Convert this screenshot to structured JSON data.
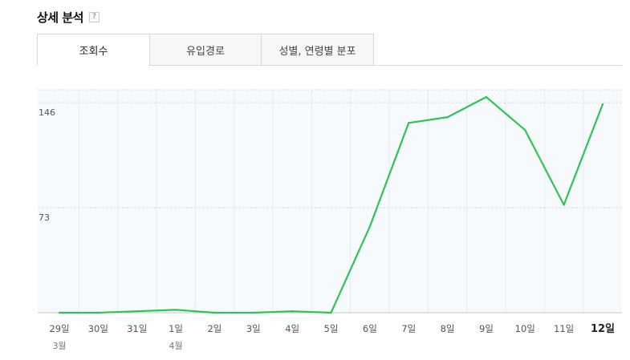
{
  "header": {
    "title": "상세 분석",
    "help_label": "?"
  },
  "tabs": [
    {
      "label": "조회수",
      "active": true
    },
    {
      "label": "유입경로",
      "active": false
    },
    {
      "label": "성별, 연령별 분포",
      "active": false
    }
  ],
  "chart_data": {
    "type": "line",
    "title": "",
    "xlabel": "",
    "ylabel": "",
    "categories": [
      "29일",
      "30일",
      "31일",
      "1일",
      "2일",
      "3일",
      "4일",
      "5일",
      "6일",
      "7일",
      "8일",
      "9일",
      "10일",
      "11일",
      "12일"
    ],
    "month_labels": {
      "0": "3월",
      "3": "4월"
    },
    "highlight_index": 14,
    "values": [
      0,
      0,
      1,
      2,
      0,
      0,
      1,
      0,
      60,
      132,
      136,
      150,
      127,
      75,
      145
    ],
    "yticks": [
      73,
      146
    ],
    "ylim": [
      0,
      155
    ],
    "grid": true,
    "line_color": "#2ec456",
    "plot_background": "#f6fafd"
  }
}
